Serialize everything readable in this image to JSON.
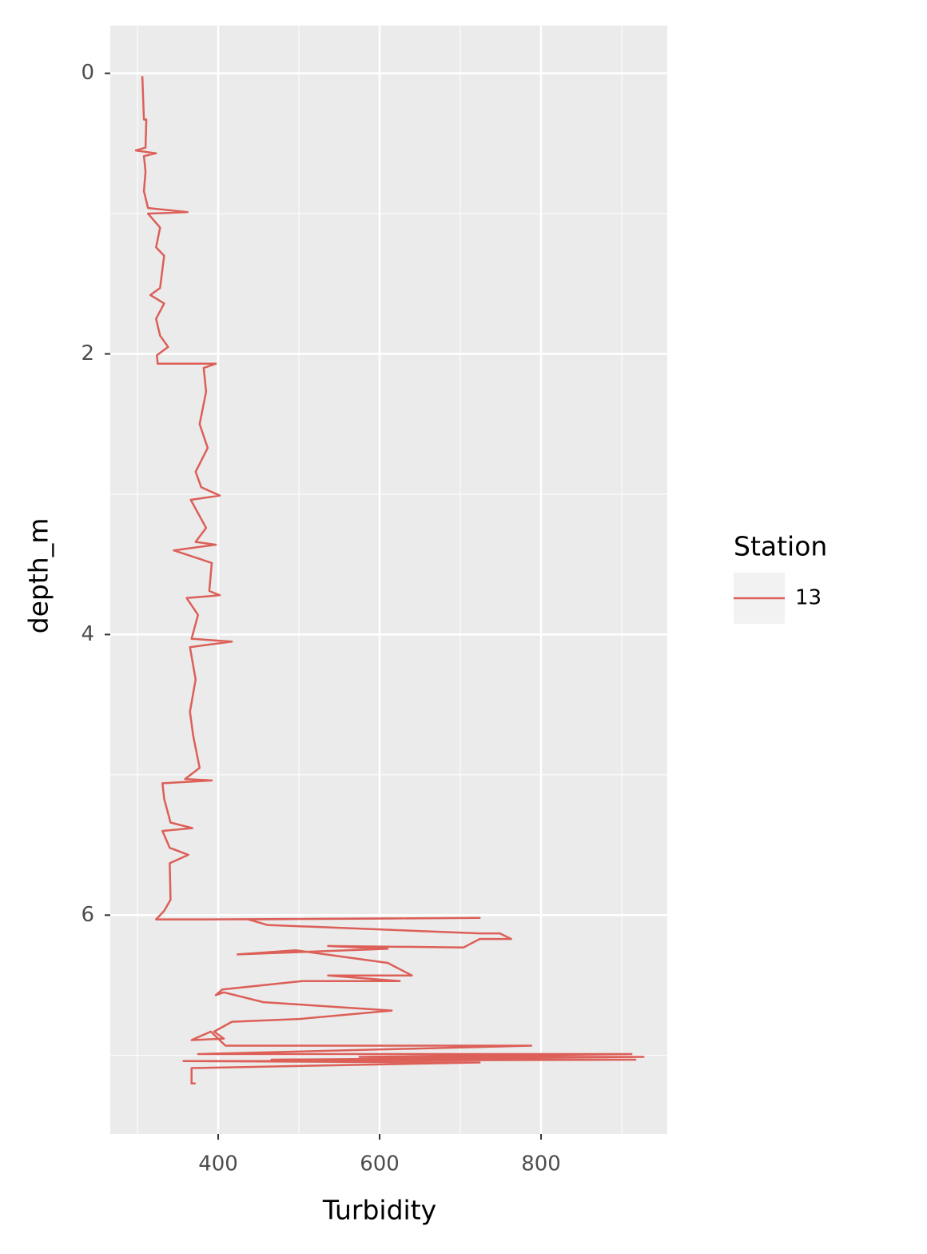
{
  "chart_data": {
    "type": "path",
    "x_label": "Turbidity",
    "y_label": "depth_m",
    "legend_title": "Station",
    "legend_position": "right",
    "xlim": [
      266.3,
      956.4
    ],
    "xticks": [
      400,
      600,
      800
    ],
    "x_minor_ticks": [
      300,
      500,
      700,
      900
    ],
    "ylim": [
      -0.34,
      7.56
    ],
    "yticks": [
      0,
      2,
      4,
      6
    ],
    "y_minor_ticks": [
      1,
      3,
      5,
      7
    ],
    "y_reversed": true,
    "grid": true,
    "series": [
      {
        "name": "13",
        "color": "#dc5f58",
        "x": [
          306,
          308,
          311,
          310,
          298,
          323,
          308,
          310,
          308,
          313,
          362,
          313,
          328,
          323,
          333,
          328,
          316,
          333,
          323,
          328,
          338,
          324,
          325,
          397,
          382,
          385,
          377,
          387,
          372,
          379,
          402,
          366,
          385,
          372,
          397,
          345,
          392,
          389,
          402,
          361,
          375,
          367,
          417,
          365,
          372,
          365,
          369,
          377,
          359,
          392,
          331,
          333,
          341,
          368,
          331,
          340,
          363,
          340,
          341,
          333,
          323,
          389,
          724,
          437,
          461,
          724,
          749,
          763,
          724,
          704,
          536,
          610,
          424,
          496,
          610,
          640,
          536,
          625,
          504,
          405,
          397,
          407,
          456,
          615,
          501,
          417,
          395,
          407,
          367,
          391,
          409,
          788,
          375,
          912,
          575,
          927,
          466,
          917,
          357,
          724,
          367,
          367,
          372
        ],
        "values": [
          0.02,
          0.33,
          0.33,
          0.53,
          0.55,
          0.57,
          0.59,
          0.7,
          0.84,
          0.96,
          0.99,
          1.0,
          1.1,
          1.24,
          1.3,
          1.53,
          1.58,
          1.64,
          1.75,
          1.87,
          1.95,
          2.01,
          2.07,
          2.07,
          2.1,
          2.27,
          2.5,
          2.67,
          2.84,
          2.95,
          3.01,
          3.04,
          3.24,
          3.34,
          3.36,
          3.4,
          3.49,
          3.69,
          3.72,
          3.74,
          3.86,
          4.03,
          4.05,
          4.09,
          4.32,
          4.55,
          4.72,
          4.95,
          5.03,
          5.04,
          5.06,
          5.17,
          5.34,
          5.38,
          5.4,
          5.52,
          5.57,
          5.63,
          5.89,
          5.97,
          6.03,
          6.03,
          6.02,
          6.03,
          6.07,
          6.13,
          6.13,
          6.17,
          6.17,
          6.23,
          6.22,
          6.24,
          6.28,
          6.25,
          6.34,
          6.43,
          6.43,
          6.47,
          6.47,
          6.53,
          6.57,
          6.55,
          6.62,
          6.68,
          6.74,
          6.76,
          6.83,
          6.88,
          6.89,
          6.83,
          6.93,
          6.93,
          6.99,
          6.99,
          7.01,
          7.01,
          7.03,
          7.03,
          7.04,
          7.05,
          7.09,
          7.2,
          7.2
        ]
      }
    ]
  }
}
